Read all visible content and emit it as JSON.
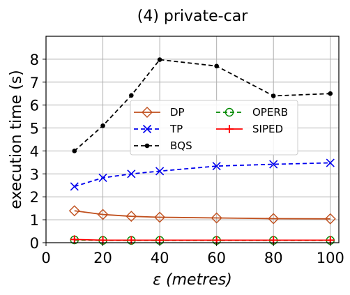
{
  "chart_data": {
    "type": "line",
    "title": "(4) private-car",
    "xlabel": "ε (metres)",
    "ylabel": "execution time (s)",
    "xlim": [
      0,
      103
    ],
    "ylim": [
      0,
      9
    ],
    "xticks": [
      "0",
      "20",
      "40",
      "60",
      "80",
      "100"
    ],
    "yticks": [
      "0",
      "1",
      "2",
      "3",
      "4",
      "5",
      "6",
      "7",
      "8"
    ],
    "grid": true,
    "legend_position": "center",
    "x": [
      10,
      20,
      30,
      40,
      60,
      80,
      100
    ],
    "series": [
      {
        "name": "DP",
        "values": [
          1.39,
          1.23,
          1.15,
          1.11,
          1.08,
          1.05,
          1.04
        ],
        "color": "#c0501e",
        "dash": "solid",
        "marker": "diamond-open"
      },
      {
        "name": "TP",
        "values": [
          2.45,
          2.83,
          3.0,
          3.12,
          3.34,
          3.42,
          3.48
        ],
        "color": "#0000ee",
        "dash": "dashed",
        "marker": "x"
      },
      {
        "name": "BQS",
        "values": [
          4.0,
          5.1,
          6.42,
          7.98,
          7.7,
          6.4,
          6.5
        ],
        "color": "#000000",
        "dash": "dashed",
        "marker": "dot"
      },
      {
        "name": "OPERB",
        "values": [
          0.12,
          0.1,
          0.1,
          0.1,
          0.1,
          0.1,
          0.1
        ],
        "color": "#008800",
        "dash": "dashed",
        "marker": "circle-open"
      },
      {
        "name": "SIPED",
        "values": [
          0.14,
          0.11,
          0.11,
          0.11,
          0.11,
          0.11,
          0.11
        ],
        "color": "#ff0000",
        "dash": "solid",
        "marker": "plus"
      }
    ]
  }
}
